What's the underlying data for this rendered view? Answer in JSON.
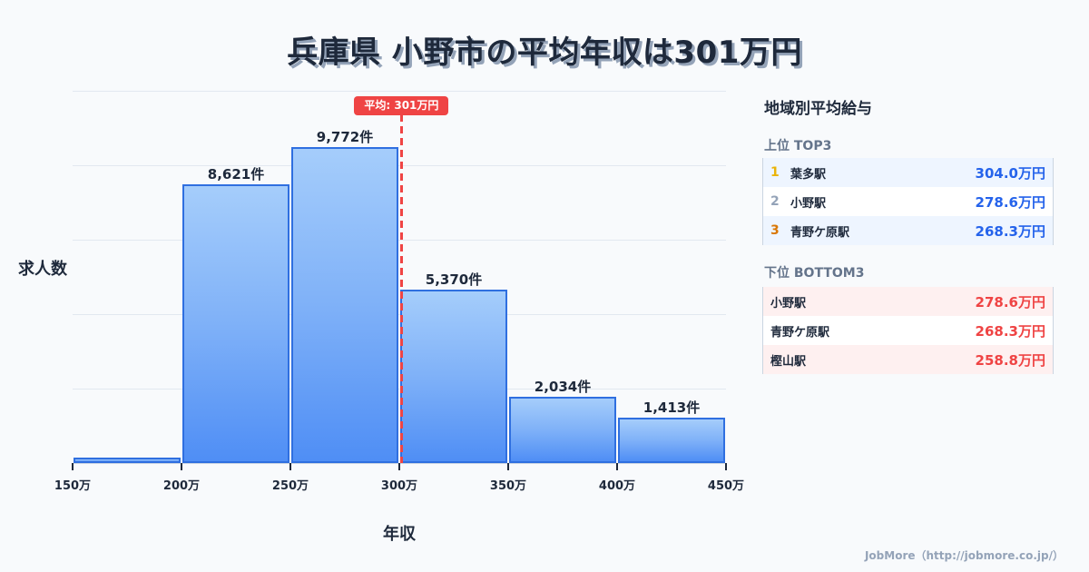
{
  "title": "兵庫県 小野市の平均年収は301万円",
  "chart_data": {
    "type": "bar",
    "title": "兵庫県 小野市の平均年収は301万円",
    "xlabel": "年収",
    "ylabel": "求人数",
    "bins": [
      "150万-200万",
      "200万-250万",
      "250万-300万",
      "300万-350万",
      "350万-400万",
      "400万-450万"
    ],
    "x_ticks": [
      "150万",
      "200万",
      "250万",
      "300万",
      "350万",
      "400万",
      "450万"
    ],
    "values": [
      170,
      8621,
      9772,
      5370,
      2034,
      1413
    ],
    "value_labels": [
      "",
      "8,621件",
      "9,772件",
      "5,370件",
      "2,034件",
      "1,413件"
    ],
    "xlim": [
      150,
      450
    ],
    "ylim": [
      0,
      11500
    ],
    "grid": true,
    "mean_line": {
      "value": 301,
      "label": "平均: 301万円",
      "color": "#ef4444"
    },
    "bar_color": "#4f8ef5",
    "bar_border_color": "#2f6fe0"
  },
  "axes": {
    "y_title": "求人数",
    "x_title": "年収"
  },
  "panel": {
    "title": "地域別平均給与",
    "top": {
      "label": "上位 TOP3",
      "rows": [
        {
          "rank": "1",
          "rank_color": "#eab308",
          "name": "葉多駅",
          "value": "304.0万円"
        },
        {
          "rank": "2",
          "rank_color": "#94a3b8",
          "name": "小野駅",
          "value": "278.6万円"
        },
        {
          "rank": "3",
          "rank_color": "#d97706",
          "name": "青野ケ原駅",
          "value": "268.3万円"
        }
      ]
    },
    "bottom": {
      "label": "下位 BOTTOM3",
      "rows": [
        {
          "name": "小野駅",
          "value": "278.6万円"
        },
        {
          "name": "青野ケ原駅",
          "value": "268.3万円"
        },
        {
          "name": "樫山駅",
          "value": "258.8万円"
        }
      ]
    }
  },
  "footer": "JobMore（http://jobmore.co.jp/）"
}
